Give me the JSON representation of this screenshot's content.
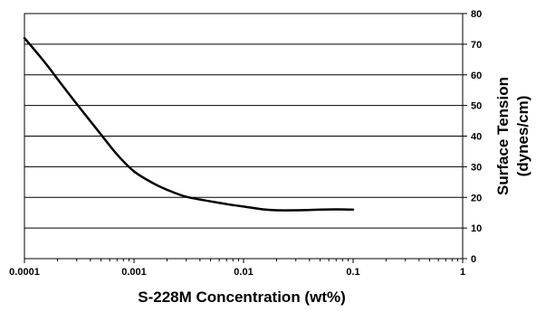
{
  "chart_data": {
    "type": "line",
    "title": "",
    "xlabel": "S-228M Concentration (wt%)",
    "ylabel_line1": "Surface Tension",
    "ylabel_line2": "(dynes/cm)",
    "x_scale": "log",
    "xlim": [
      0.0001,
      1
    ],
    "ylim": [
      0,
      80
    ],
    "y_axis_side": "right",
    "grid": "horizontal",
    "legend": "none",
    "x_ticks": [
      {
        "value": 0.0001,
        "label": "0.0001"
      },
      {
        "value": 0.001,
        "label": "0.001"
      },
      {
        "value": 0.01,
        "label": "0.01"
      },
      {
        "value": 0.1,
        "label": "0.1"
      },
      {
        "value": 1,
        "label": "1"
      }
    ],
    "y_ticks": [
      {
        "value": 0,
        "label": "0"
      },
      {
        "value": 10,
        "label": "10"
      },
      {
        "value": 20,
        "label": "20"
      },
      {
        "value": 30,
        "label": "30"
      },
      {
        "value": 40,
        "label": "40"
      },
      {
        "value": 50,
        "label": "50"
      },
      {
        "value": 60,
        "label": "60"
      },
      {
        "value": 70,
        "label": "70"
      },
      {
        "value": 80,
        "label": "80"
      }
    ],
    "series": [
      {
        "color": "#000000",
        "x": [
          0.0001,
          0.00015,
          0.0002,
          0.0003,
          0.0005,
          0.0007,
          0.001,
          0.0015,
          0.002,
          0.003,
          0.005,
          0.007,
          0.01,
          0.015,
          0.02,
          0.03,
          0.05,
          0.07,
          0.1
        ],
        "y": [
          72,
          64.5,
          58.7,
          50.5,
          40.5,
          34,
          28.5,
          24.6,
          22.5,
          20.2,
          18.7,
          17.8,
          17,
          16.1,
          15.8,
          15.8,
          16,
          16.1,
          16
        ]
      }
    ]
  }
}
